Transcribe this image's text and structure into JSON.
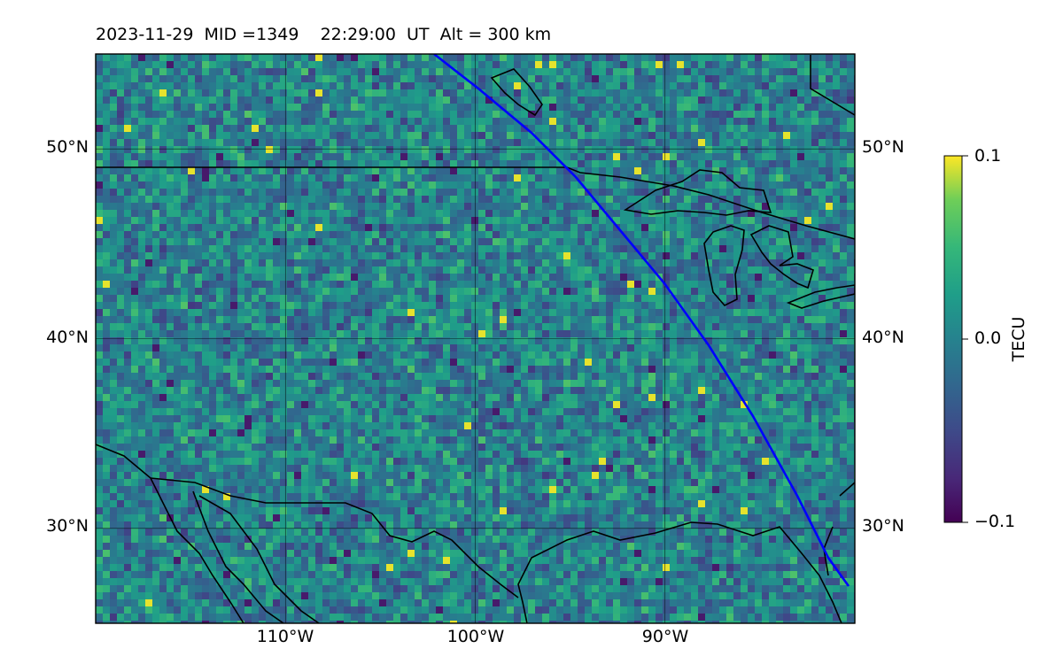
{
  "figure": {
    "title": "2023-11-29  MID =1349    22:29:00  UT  Alt = 300 km"
  },
  "map": {
    "type": "heatmap",
    "region": "North America (central/southern US)",
    "lon_range_deg": [
      -120,
      -80
    ],
    "lat_range_deg": [
      25,
      55
    ],
    "colormap": "viridis",
    "terminator_line_color": "#0000ff",
    "coastline_color": "#000000",
    "gridlines": true
  },
  "axes": {
    "lat_ticks": [
      {
        "value": 50,
        "label": "50°N"
      },
      {
        "value": 40,
        "label": "40°N"
      },
      {
        "value": 30,
        "label": "30°N"
      }
    ],
    "lon_ticks": [
      {
        "value": -110,
        "label": "110°W"
      },
      {
        "value": -100,
        "label": "100°W"
      },
      {
        "value": -90,
        "label": "90°W"
      }
    ]
  },
  "colorbar": {
    "label": "TECU",
    "ticks": [
      {
        "value": 0.1,
        "label": "0.1"
      },
      {
        "value": 0.0,
        "label": "0.0"
      },
      {
        "value": -0.1,
        "label": "−0.1"
      }
    ],
    "range": [
      -0.1,
      0.1
    ]
  }
}
